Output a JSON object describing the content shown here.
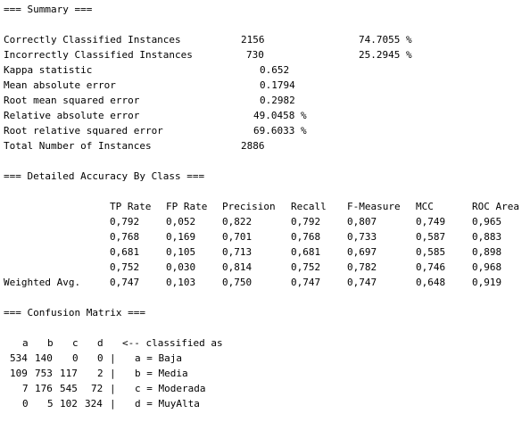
{
  "summary": {
    "header": "=== Summary ===",
    "rows": [
      {
        "label": "Correctly Classified Instances",
        "value": "2156",
        "pct": "74.7055 %"
      },
      {
        "label": "Incorrectly Classified Instances",
        "value": "730",
        "pct": "25.2945 %"
      },
      {
        "label": "Kappa statistic",
        "value": "0.652"
      },
      {
        "label": "Mean absolute error",
        "value": "0.1794"
      },
      {
        "label": "Root mean squared error",
        "value": "0.2982"
      },
      {
        "label": "Relative absolute error",
        "value": "49.0458 %"
      },
      {
        "label": "Root relative squared error",
        "value": "69.6033 %"
      },
      {
        "label": "Total Number of Instances",
        "value": "2886"
      }
    ]
  },
  "accuracy": {
    "header": "=== Detailed Accuracy By Class ===",
    "columns": [
      "TP Rate",
      "FP Rate",
      "Precision",
      "Recall",
      "F-Measure",
      "MCC",
      "ROC Area"
    ],
    "rows": [
      [
        "0,792",
        "0,052",
        "0,822",
        "0,792",
        "0,807",
        "0,749",
        "0,965"
      ],
      [
        "0,768",
        "0,169",
        "0,701",
        "0,768",
        "0,733",
        "0,587",
        "0,883"
      ],
      [
        "0,681",
        "0,105",
        "0,713",
        "0,681",
        "0,697",
        "0,585",
        "0,898"
      ],
      [
        "0,752",
        "0,030",
        "0,814",
        "0,752",
        "0,782",
        "0,746",
        "0,968"
      ]
    ],
    "weighted_label": "Weighted Avg.",
    "weighted": [
      "0,747",
      "0,103",
      "0,750",
      "0,747",
      "0,747",
      "0,648",
      "0,919"
    ]
  },
  "confusion": {
    "header": "=== Confusion Matrix ===",
    "columns": [
      "a",
      "b",
      "c",
      "d"
    ],
    "classified_as": "<-- classified as",
    "rows": [
      {
        "cells": [
          "534",
          "140",
          "0",
          "0"
        ],
        "sep": "|",
        "label": "a = Baja"
      },
      {
        "cells": [
          "109",
          "753",
          "117",
          "2"
        ],
        "sep": "|",
        "label": "b = Media"
      },
      {
        "cells": [
          "7",
          "176",
          "545",
          "72"
        ],
        "sep": "|",
        "label": "c = Moderada"
      },
      {
        "cells": [
          "0",
          "5",
          "102",
          "324"
        ],
        "sep": "|",
        "label": "d = MuyAlta"
      }
    ]
  }
}
